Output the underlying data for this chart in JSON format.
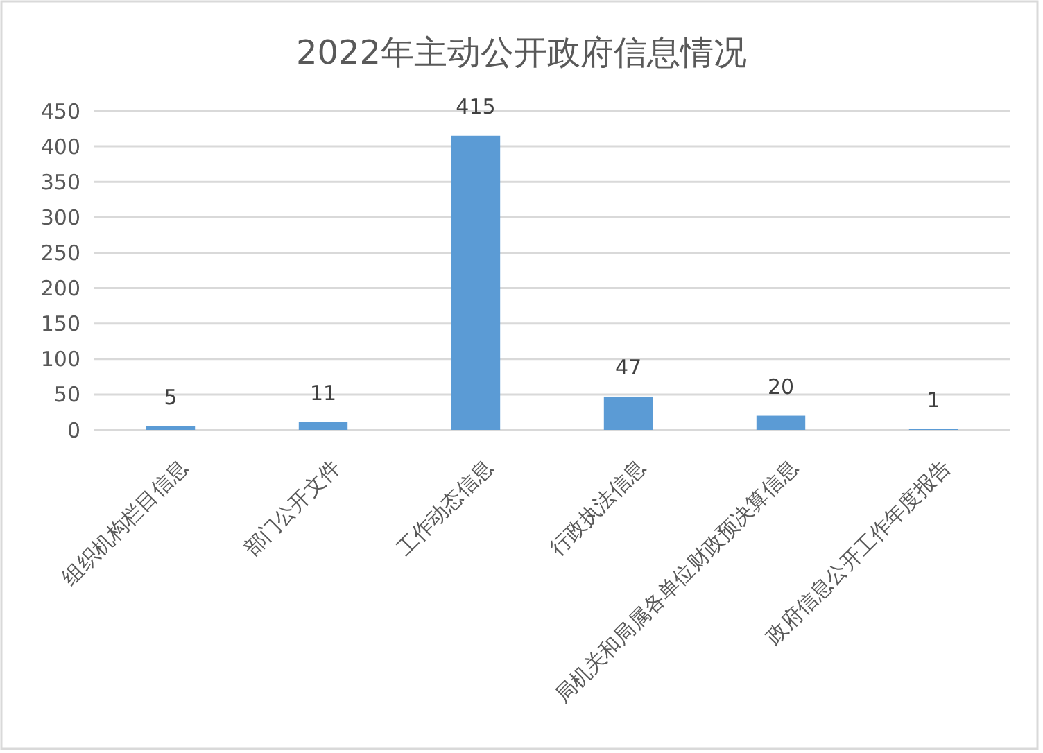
{
  "chart_data": {
    "type": "bar",
    "title": "2022年主动公开政府信息情况",
    "categories": [
      "组织机构栏目信息",
      "部门公开文件",
      "工作动态信息",
      "行政执法信息",
      "局机关和局属各单位财政预决算信息",
      "政府信息公开工作年度报告"
    ],
    "values": [
      5,
      11,
      415,
      47,
      20,
      1
    ],
    "color": "#5b9bd5",
    "ylim": [
      0,
      450
    ],
    "yticks": [
      0,
      50,
      100,
      150,
      200,
      250,
      300,
      350,
      400,
      450
    ],
    "grid": "y",
    "data_labels": true
  }
}
